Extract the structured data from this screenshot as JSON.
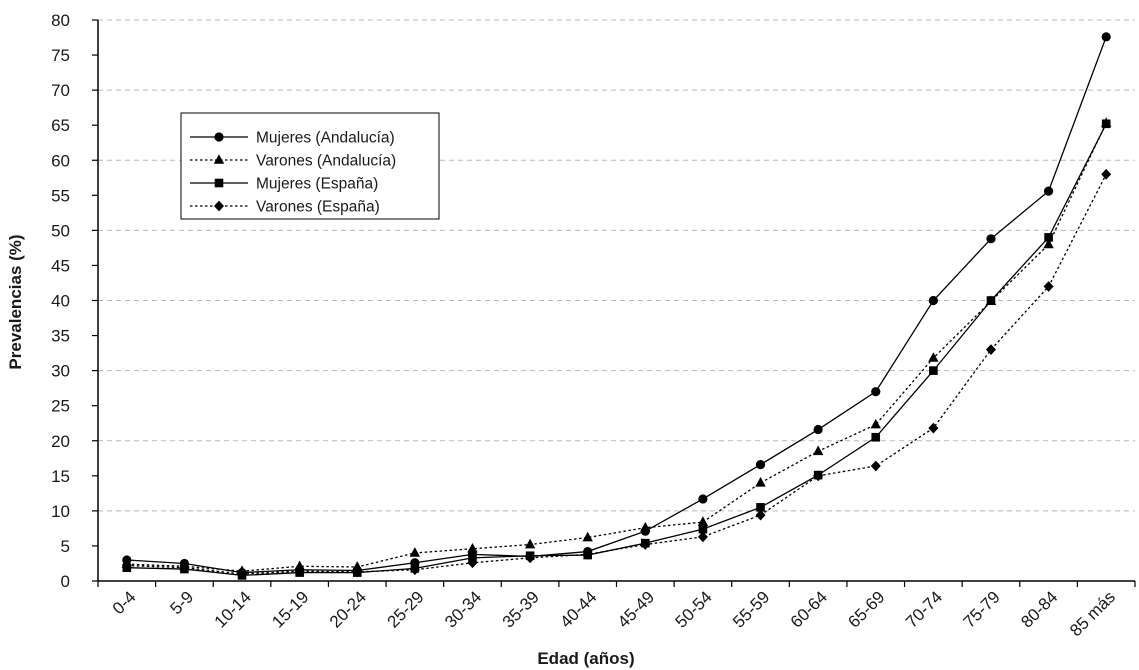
{
  "chart_data": {
    "type": "line",
    "title": "",
    "xlabel": "Edad (años)",
    "ylabel": "Prevalencias (%)",
    "categories": [
      "0-4",
      "5-9",
      "10-14",
      "15-19",
      "20-24",
      "25-29",
      "30-34",
      "35-39",
      "40-44",
      "45-49",
      "50-54",
      "55-59",
      "60-64",
      "65-69",
      "70-74",
      "75-79",
      "80-84",
      "85 más"
    ],
    "ylim": [
      0,
      80
    ],
    "ytick_labels": [
      "0",
      "5",
      "10",
      "15",
      "20",
      "25",
      "30",
      "35",
      "40",
      "45",
      "50",
      "55",
      "60",
      "65",
      "70",
      "75",
      "80"
    ],
    "grid": "horizontal dashed",
    "legend_position": "top-left",
    "series": [
      {
        "name": "Mujeres (Andalucía)",
        "marker": "circle",
        "line": "solid",
        "color": "#000000",
        "values": [
          3.0,
          2.5,
          1.2,
          1.6,
          1.5,
          2.6,
          3.8,
          3.5,
          4.2,
          7.1,
          11.7,
          16.6,
          21.6,
          27.0,
          40.0,
          48.8,
          55.6,
          77.6
        ]
      },
      {
        "name": "Varones (Andalucía)",
        "marker": "triangle",
        "line": "dotted",
        "color": "#000000",
        "values": [
          2.4,
          2.1,
          1.4,
          2.1,
          2.0,
          4.0,
          4.6,
          5.2,
          6.2,
          7.6,
          8.4,
          14.0,
          18.5,
          22.3,
          31.8,
          39.9,
          48.0,
          65.3
        ]
      },
      {
        "name": "Mujeres (España)",
        "marker": "square",
        "line": "solid",
        "color": "#000000",
        "values": [
          1.9,
          1.7,
          0.8,
          1.2,
          1.2,
          1.8,
          3.3,
          3.6,
          3.7,
          5.4,
          7.4,
          10.5,
          15.1,
          20.5,
          30.0,
          40.0,
          49.0,
          65.2
        ]
      },
      {
        "name": "Varones (España)",
        "marker": "diamond",
        "line": "dotted",
        "color": "#000000",
        "values": [
          2.2,
          1.9,
          1.0,
          1.4,
          1.3,
          1.6,
          2.6,
          3.3,
          3.8,
          5.2,
          6.3,
          9.4,
          15.0,
          16.4,
          21.8,
          33.0,
          42.0,
          58.0
        ]
      }
    ]
  }
}
